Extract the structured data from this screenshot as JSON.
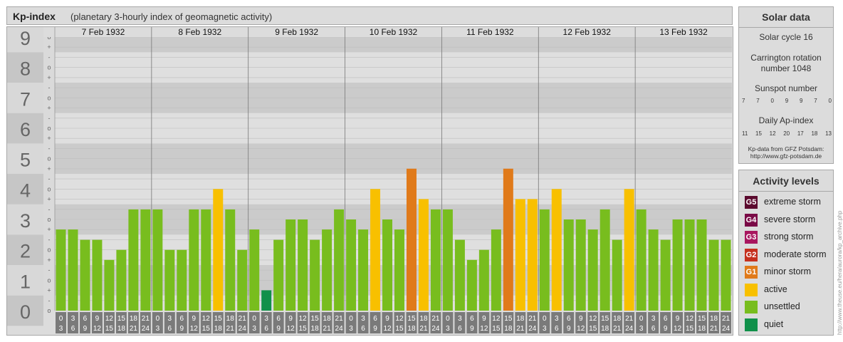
{
  "header": {
    "title": "Kp-index",
    "subtitle": "(planetary 3-hourly index of geomagnetic activity)"
  },
  "solar": {
    "title": "Solar data",
    "cycle": "Solar cycle 16",
    "carrington": "Carrington rotation number 1048",
    "sunspot_label": "Sunspot number",
    "sunspot_values": [
      "7",
      "7",
      "0",
      "9",
      "9",
      "7",
      "0"
    ],
    "ap_label": "Daily Ap-index",
    "ap_values": [
      "11",
      "15",
      "12",
      "20",
      "17",
      "18",
      "13"
    ],
    "source_line1": "Kp-data from GFZ Potsdam:",
    "source_line2": "http://www.gfz-potsdam.de"
  },
  "legend": {
    "title": "Activity levels",
    "items": [
      {
        "code": "G5",
        "label": "extreme storm",
        "color": "#5b0a2e"
      },
      {
        "code": "G4",
        "label": "severe storm",
        "color": "#7a0a46"
      },
      {
        "code": "G3",
        "label": "strong storm",
        "color": "#a8165f"
      },
      {
        "code": "G2",
        "label": "moderate storm",
        "color": "#c5301e"
      },
      {
        "code": "G1",
        "label": "minor storm",
        "color": "#e07a1a"
      },
      {
        "code": "",
        "label": "active",
        "color": "#f8c000"
      },
      {
        "code": "",
        "label": "unsettled",
        "color": "#78bd1e"
      },
      {
        "code": "",
        "label": "quiet",
        "color": "#10904a"
      }
    ]
  },
  "credit": "http://www.theuse.eu/hera/aurora/kp_archive.php",
  "chart_data": {
    "type": "bar",
    "title": "Kp-index",
    "ylim": [
      0,
      9
    ],
    "y_ticks": [
      "0",
      "1",
      "2",
      "3",
      "4",
      "5",
      "6",
      "7",
      "8",
      "9"
    ],
    "minor_tick_labels": [
      "+",
      "o",
      "-"
    ],
    "days": [
      "7 Feb 1932",
      "8 Feb 1932",
      "9 Feb 1932",
      "10 Feb 1932",
      "11 Feb 1932",
      "12 Feb 1932",
      "13 Feb 1932"
    ],
    "hour_start": [
      "0",
      "3",
      "6",
      "9",
      "12",
      "15",
      "18",
      "21"
    ],
    "hour_end": [
      "3",
      "6",
      "9",
      "12",
      "15",
      "18",
      "21",
      "24"
    ],
    "values": [
      2.67,
      2.67,
      2.33,
      2.33,
      1.67,
      2.0,
      3.33,
      3.33,
      3.33,
      2.0,
      2.0,
      3.33,
      3.33,
      4.0,
      3.33,
      2.0,
      2.67,
      0.67,
      2.33,
      3.0,
      3.0,
      2.33,
      2.67,
      3.33,
      3.0,
      2.67,
      4.0,
      3.0,
      2.67,
      4.67,
      3.67,
      3.33,
      3.33,
      2.33,
      1.67,
      2.0,
      2.67,
      4.67,
      3.67,
      3.67,
      3.33,
      4.0,
      3.0,
      3.0,
      2.67,
      3.33,
      2.33,
      4.0,
      3.33,
      2.67,
      2.33,
      3.0,
      3.0,
      3.0,
      2.33,
      2.33
    ],
    "colors": {
      "quiet": "#10904a",
      "unsettled": "#78bd1e",
      "active": "#f8c000",
      "minor_storm": "#e07a1a"
    },
    "band_colors": [
      "#cbcbcb",
      "#dfdfdf"
    ]
  }
}
